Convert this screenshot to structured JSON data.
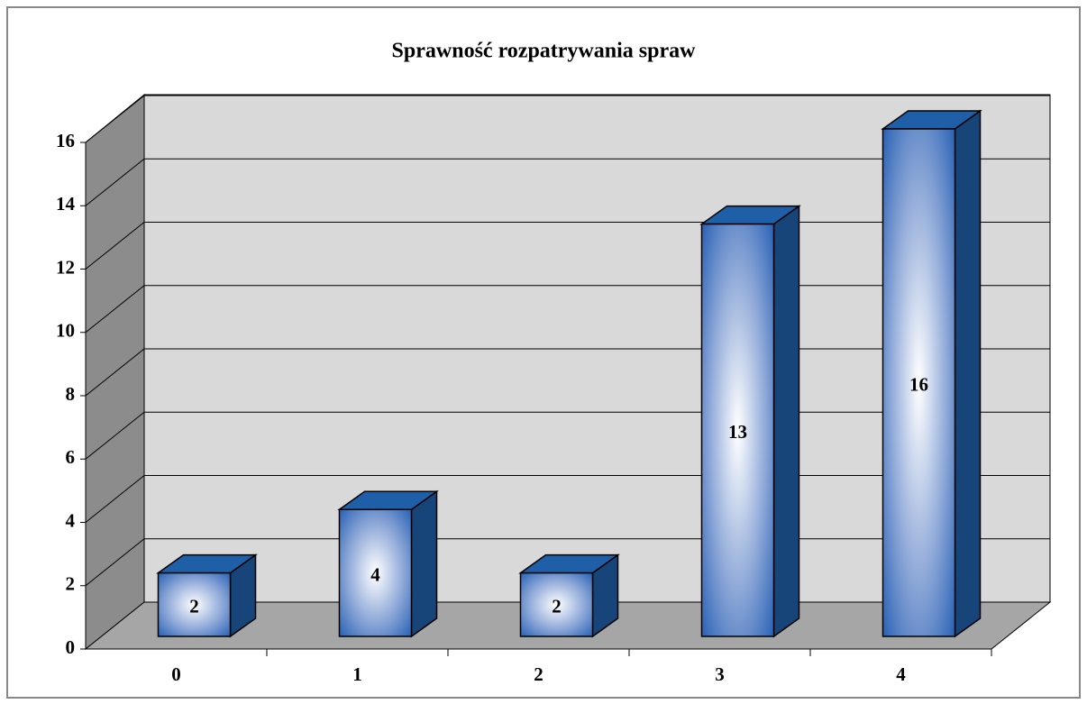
{
  "chart_data": {
    "type": "bar",
    "title": "Sprawność rozpatrywania  spraw",
    "categories": [
      "0",
      "1",
      "2",
      "3",
      "4"
    ],
    "values": [
      2,
      4,
      2,
      13,
      16
    ],
    "color": "#1f5fa8",
    "ylim": [
      0,
      16
    ],
    "yticks": [
      0,
      2,
      4,
      6,
      8,
      10,
      12,
      14,
      16
    ],
    "grid": true
  }
}
